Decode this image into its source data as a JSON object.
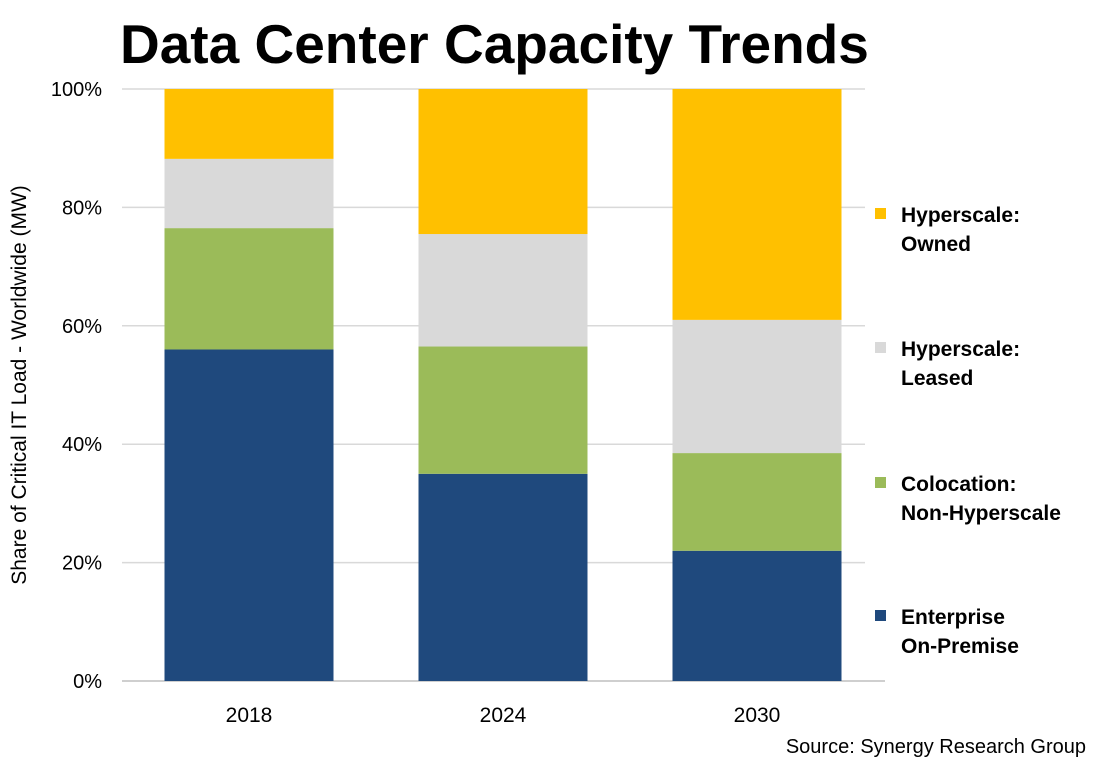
{
  "chart_data": {
    "type": "bar",
    "stacked": true,
    "title": "Data Center Capacity Trends",
    "ylabel": "Share of Critical IT Load - Worldwide (MW)",
    "xlabel": "",
    "ylim": [
      0,
      100
    ],
    "yticks": [
      0,
      20,
      40,
      60,
      80,
      100
    ],
    "ytick_labels": [
      "0%",
      "20%",
      "40%",
      "60%",
      "80%",
      "100%"
    ],
    "grid": true,
    "legend_position": "right",
    "categories": [
      "2018",
      "2024",
      "2030"
    ],
    "series": [
      {
        "name": "Enterprise On-Premise",
        "label_lines": [
          "Enterprise",
          "On-Premise"
        ],
        "color": "#1F497D",
        "values": [
          56,
          35,
          22
        ]
      },
      {
        "name": "Colocation: Non-Hyperscale",
        "label_lines": [
          "Colocation:",
          "Non-Hyperscale"
        ],
        "color": "#9BBB59",
        "values": [
          20.5,
          21.5,
          16.5
        ]
      },
      {
        "name": "Hyperscale: Leased",
        "label_lines": [
          "Hyperscale:",
          "Leased"
        ],
        "color": "#D9D9D9",
        "values": [
          11.7,
          19,
          22.5
        ]
      },
      {
        "name": "Hyperscale: Owned",
        "label_lines": [
          "Hyperscale:",
          "Owned"
        ],
        "color": "#FFC000",
        "values": [
          11.8,
          24.5,
          39
        ]
      }
    ],
    "source": "Source: Synergy Research Group"
  }
}
